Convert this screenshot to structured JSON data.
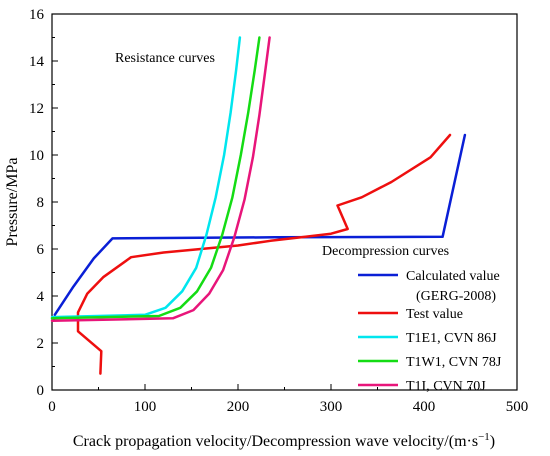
{
  "chart_data": {
    "type": "line",
    "xlabel": "Crack propagation velocity/Decompression wave velocity/(m·s",
    "xlabel_sup": "−1",
    "xlabel_end": ")",
    "ylabel": "Pressure/MPa",
    "xlim": [
      0,
      500
    ],
    "ylim": [
      0,
      16
    ],
    "xticks": [
      0,
      100,
      200,
      300,
      400,
      500
    ],
    "yticks": [
      0,
      2,
      4,
      6,
      8,
      10,
      12,
      14,
      16
    ],
    "grid": false,
    "annotations": {
      "resistance": "Resistance curves",
      "decompression": "Decompression curves"
    },
    "legend_position": "lower-right",
    "series": [
      {
        "name": "Calculated value",
        "name_line2": "(GERG-2008)",
        "color": "#0a1fd6",
        "x": [
          3,
          23,
          45,
          65,
          240,
          420,
          444
        ],
        "y": [
          3.2,
          4.4,
          5.6,
          6.45,
          6.5,
          6.52,
          10.85
        ]
      },
      {
        "name": "Test value",
        "color": "#ee0f0f",
        "x": [
          52,
          53,
          28,
          28,
          38,
          55,
          85,
          120,
          200,
          235,
          268,
          300,
          318,
          307,
          333,
          365,
          407,
          428
        ],
        "y": [
          0.7,
          1.65,
          2.5,
          3.3,
          4.1,
          4.8,
          5.65,
          5.85,
          6.15,
          6.35,
          6.5,
          6.65,
          6.85,
          7.85,
          8.2,
          8.85,
          9.9,
          10.85
        ]
      },
      {
        "name": "T1E1, CVN 86J",
        "color": "#00e6ee",
        "x": [
          0,
          100,
          122,
          140,
          155,
          166,
          176,
          185,
          192,
          198,
          202
        ],
        "y": [
          3.1,
          3.2,
          3.5,
          4.2,
          5.2,
          6.6,
          8.2,
          10.0,
          11.8,
          13.6,
          15.0
        ]
      },
      {
        "name": "T1W1, CVN 78J",
        "color": "#14dc14",
        "x": [
          0,
          115,
          138,
          156,
          171,
          183,
          194,
          203,
          211,
          218,
          223
        ],
        "y": [
          3.05,
          3.15,
          3.5,
          4.2,
          5.2,
          6.6,
          8.2,
          10.0,
          11.8,
          13.6,
          15.0
        ]
      },
      {
        "name": "T1I, CVN 70J",
        "color": "#e8157a",
        "x": [
          0,
          130,
          152,
          169,
          184,
          196,
          207,
          216,
          223,
          229,
          234
        ],
        "y": [
          2.95,
          3.05,
          3.4,
          4.1,
          5.1,
          6.5,
          8.1,
          9.9,
          11.7,
          13.5,
          15.0
        ]
      }
    ]
  }
}
